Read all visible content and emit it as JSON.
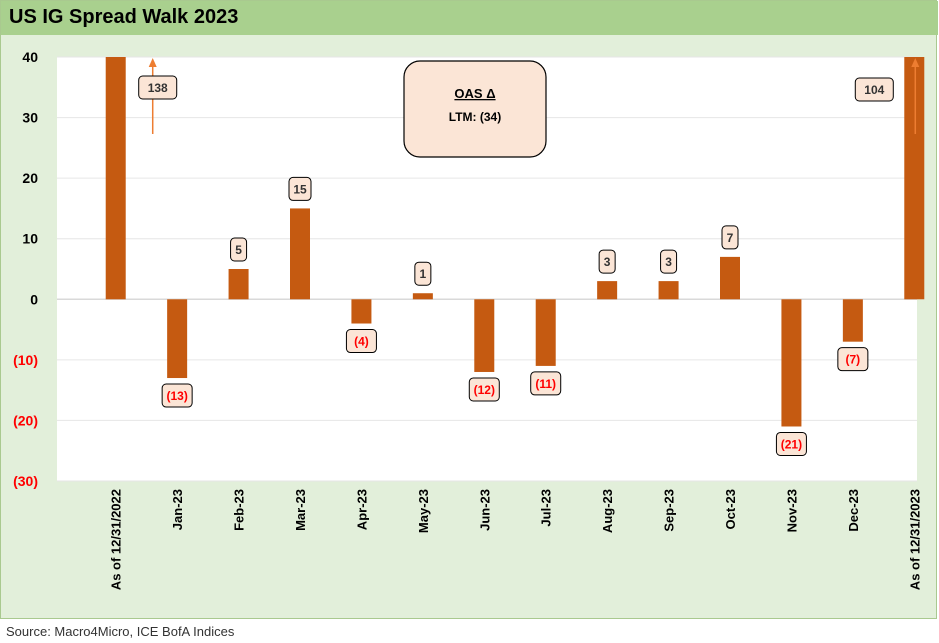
{
  "source_note": "Source: Macro4Micro, ICE BofA Indices",
  "colors": {
    "bar": "#c55a11",
    "negative_label": "#ff0000",
    "label_fill": "#fbe5d6"
  },
  "annotation": {
    "title": "OAS Δ",
    "subtitle": "LTM: (34)"
  },
  "chart_data": {
    "type": "bar",
    "title": "US IG Spread Walk 2023",
    "xlabel": "",
    "ylabel": "",
    "ylim": [
      -30,
      40
    ],
    "y_ticks": [
      40,
      30,
      20,
      10,
      0,
      -10,
      -20,
      -30
    ],
    "y_tick_labels": [
      "40",
      "30",
      "20",
      "10",
      "0",
      "(10)",
      "(20)",
      "(30)"
    ],
    "categories": [
      "As of 12/31/2022",
      "Jan-23",
      "Feb-23",
      "Mar-23",
      "Apr-23",
      "May-23",
      "Jun-23",
      "Jul-23",
      "Aug-23",
      "Sep-23",
      "Oct-23",
      "Nov-23",
      "Dec-23",
      "As of 12/31/2023"
    ],
    "values": [
      138,
      -13,
      5,
      15,
      -4,
      1,
      -12,
      -11,
      3,
      3,
      7,
      -21,
      -7,
      104
    ],
    "data_labels": [
      "138",
      "(13)",
      "5",
      "15",
      "(4)",
      "1",
      "(12)",
      "(11)",
      "3",
      "3",
      "7",
      "(21)",
      "(7)",
      "104"
    ],
    "grid": true,
    "legend": "none"
  }
}
